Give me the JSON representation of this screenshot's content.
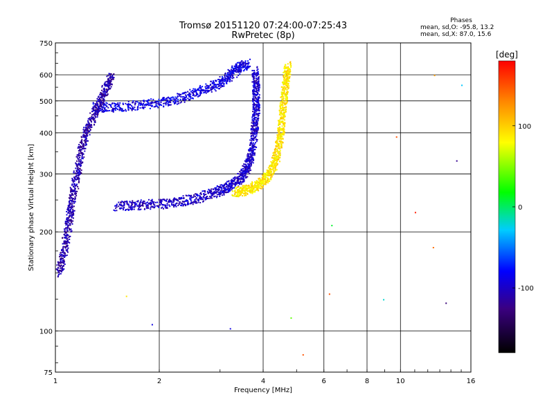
{
  "chart_data": {
    "type": "scatter",
    "title": "Tromsø 20151120 07:24:00-07:25:43",
    "subtitle": "RwPretec (8p)",
    "xlabel": "Frequency [MHz]",
    "ylabel": "Stationary phase Virtual Height [km]",
    "x_scale": "log",
    "y_scale": "log",
    "xlim": [
      1,
      16
    ],
    "ylim": [
      75,
      750
    ],
    "x_ticks": [
      1,
      2,
      4,
      6,
      8,
      10,
      16
    ],
    "y_ticks": [
      75,
      100,
      200,
      300,
      400,
      500,
      600,
      750
    ],
    "x_grid": [
      2,
      4,
      6,
      8,
      10
    ],
    "y_grid": [
      100,
      200,
      300,
      400,
      500,
      600
    ],
    "grid": true,
    "phases_box": {
      "title": "Phases",
      "line1": "mean, sd,O:  -95.8, 13.2",
      "line2": "mean, sd,X:  87.0, 15.6"
    },
    "colorbar": {
      "label": "[deg]",
      "range": [
        -180,
        180
      ],
      "ticks": [
        100,
        0,
        -100
      ],
      "tick_labels": [
        "100",
        "0",
        "-100"
      ]
    },
    "series": [
      {
        "id": "O-mode lower trace",
        "phase": -100,
        "points": [
          [
            1.5,
            240
          ],
          [
            1.7,
            242
          ],
          [
            2.0,
            244
          ],
          [
            2.3,
            248
          ],
          [
            2.6,
            255
          ],
          [
            2.9,
            265
          ],
          [
            3.1,
            272
          ],
          [
            3.3,
            282
          ],
          [
            3.5,
            300
          ],
          [
            3.6,
            320
          ],
          [
            3.7,
            350
          ],
          [
            3.75,
            400
          ],
          [
            3.8,
            450
          ],
          [
            3.8,
            500
          ],
          [
            3.8,
            560
          ],
          [
            3.78,
            620
          ]
        ]
      },
      {
        "id": "X-mode lower trace",
        "phase": 90,
        "points": [
          [
            3.3,
            265
          ],
          [
            3.5,
            268
          ],
          [
            3.7,
            272
          ],
          [
            3.9,
            282
          ],
          [
            4.1,
            295
          ],
          [
            4.25,
            315
          ],
          [
            4.35,
            340
          ],
          [
            4.45,
            380
          ],
          [
            4.5,
            420
          ],
          [
            4.55,
            480
          ],
          [
            4.6,
            540
          ],
          [
            4.65,
            600
          ],
          [
            4.7,
            640
          ]
        ]
      },
      {
        "id": "O-mode upper trace",
        "phase": -90,
        "points": [
          [
            1.3,
            480
          ],
          [
            1.5,
            480
          ],
          [
            1.8,
            488
          ],
          [
            2.1,
            500
          ],
          [
            2.4,
            520
          ],
          [
            2.7,
            545
          ],
          [
            3.0,
            570
          ],
          [
            3.2,
            600
          ],
          [
            3.4,
            635
          ],
          [
            3.6,
            650
          ]
        ]
      },
      {
        "id": "low-frequency spread",
        "phase": -110,
        "points": [
          [
            1.02,
            150
          ],
          [
            1.05,
            170
          ],
          [
            1.08,
            200
          ],
          [
            1.1,
            230
          ],
          [
            1.12,
            260
          ],
          [
            1.15,
            300
          ],
          [
            1.18,
            350
          ],
          [
            1.22,
            400
          ],
          [
            1.28,
            450
          ],
          [
            1.35,
            500
          ],
          [
            1.4,
            550
          ],
          [
            1.45,
            600
          ]
        ]
      }
    ],
    "sporadic_points": [
      {
        "x": 3.2,
        "y": 102,
        "phase": -90
      },
      {
        "x": 4.8,
        "y": 110,
        "phase": 40
      },
      {
        "x": 5.2,
        "y": 85,
        "phase": 150
      },
      {
        "x": 6.2,
        "y": 130,
        "phase": 150
      },
      {
        "x": 6.3,
        "y": 210,
        "phase": 10
      },
      {
        "x": 8.9,
        "y": 125,
        "phase": -20
      },
      {
        "x": 9.7,
        "y": 390,
        "phase": 150
      },
      {
        "x": 11.0,
        "y": 230,
        "phase": 170
      },
      {
        "x": 12.4,
        "y": 180,
        "phase": 140
      },
      {
        "x": 12.5,
        "y": 600,
        "phase": 120
      },
      {
        "x": 13.5,
        "y": 122,
        "phase": -130
      },
      {
        "x": 14.5,
        "y": 330,
        "phase": -120
      },
      {
        "x": 15.0,
        "y": 560,
        "phase": -30
      },
      {
        "x": 1.6,
        "y": 128,
        "phase": 90
      },
      {
        "x": 1.9,
        "y": 105,
        "phase": -90
      }
    ]
  }
}
